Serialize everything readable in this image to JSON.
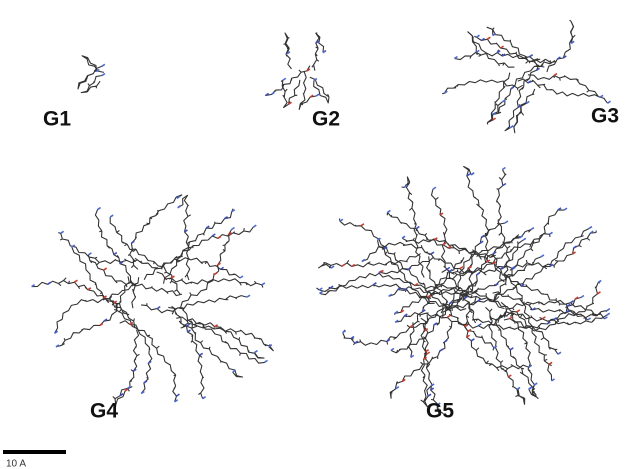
{
  "figure": {
    "labels": [
      "G1",
      "G2",
      "G3",
      "G4",
      "G5"
    ],
    "scale_bar": "10 A"
  }
}
